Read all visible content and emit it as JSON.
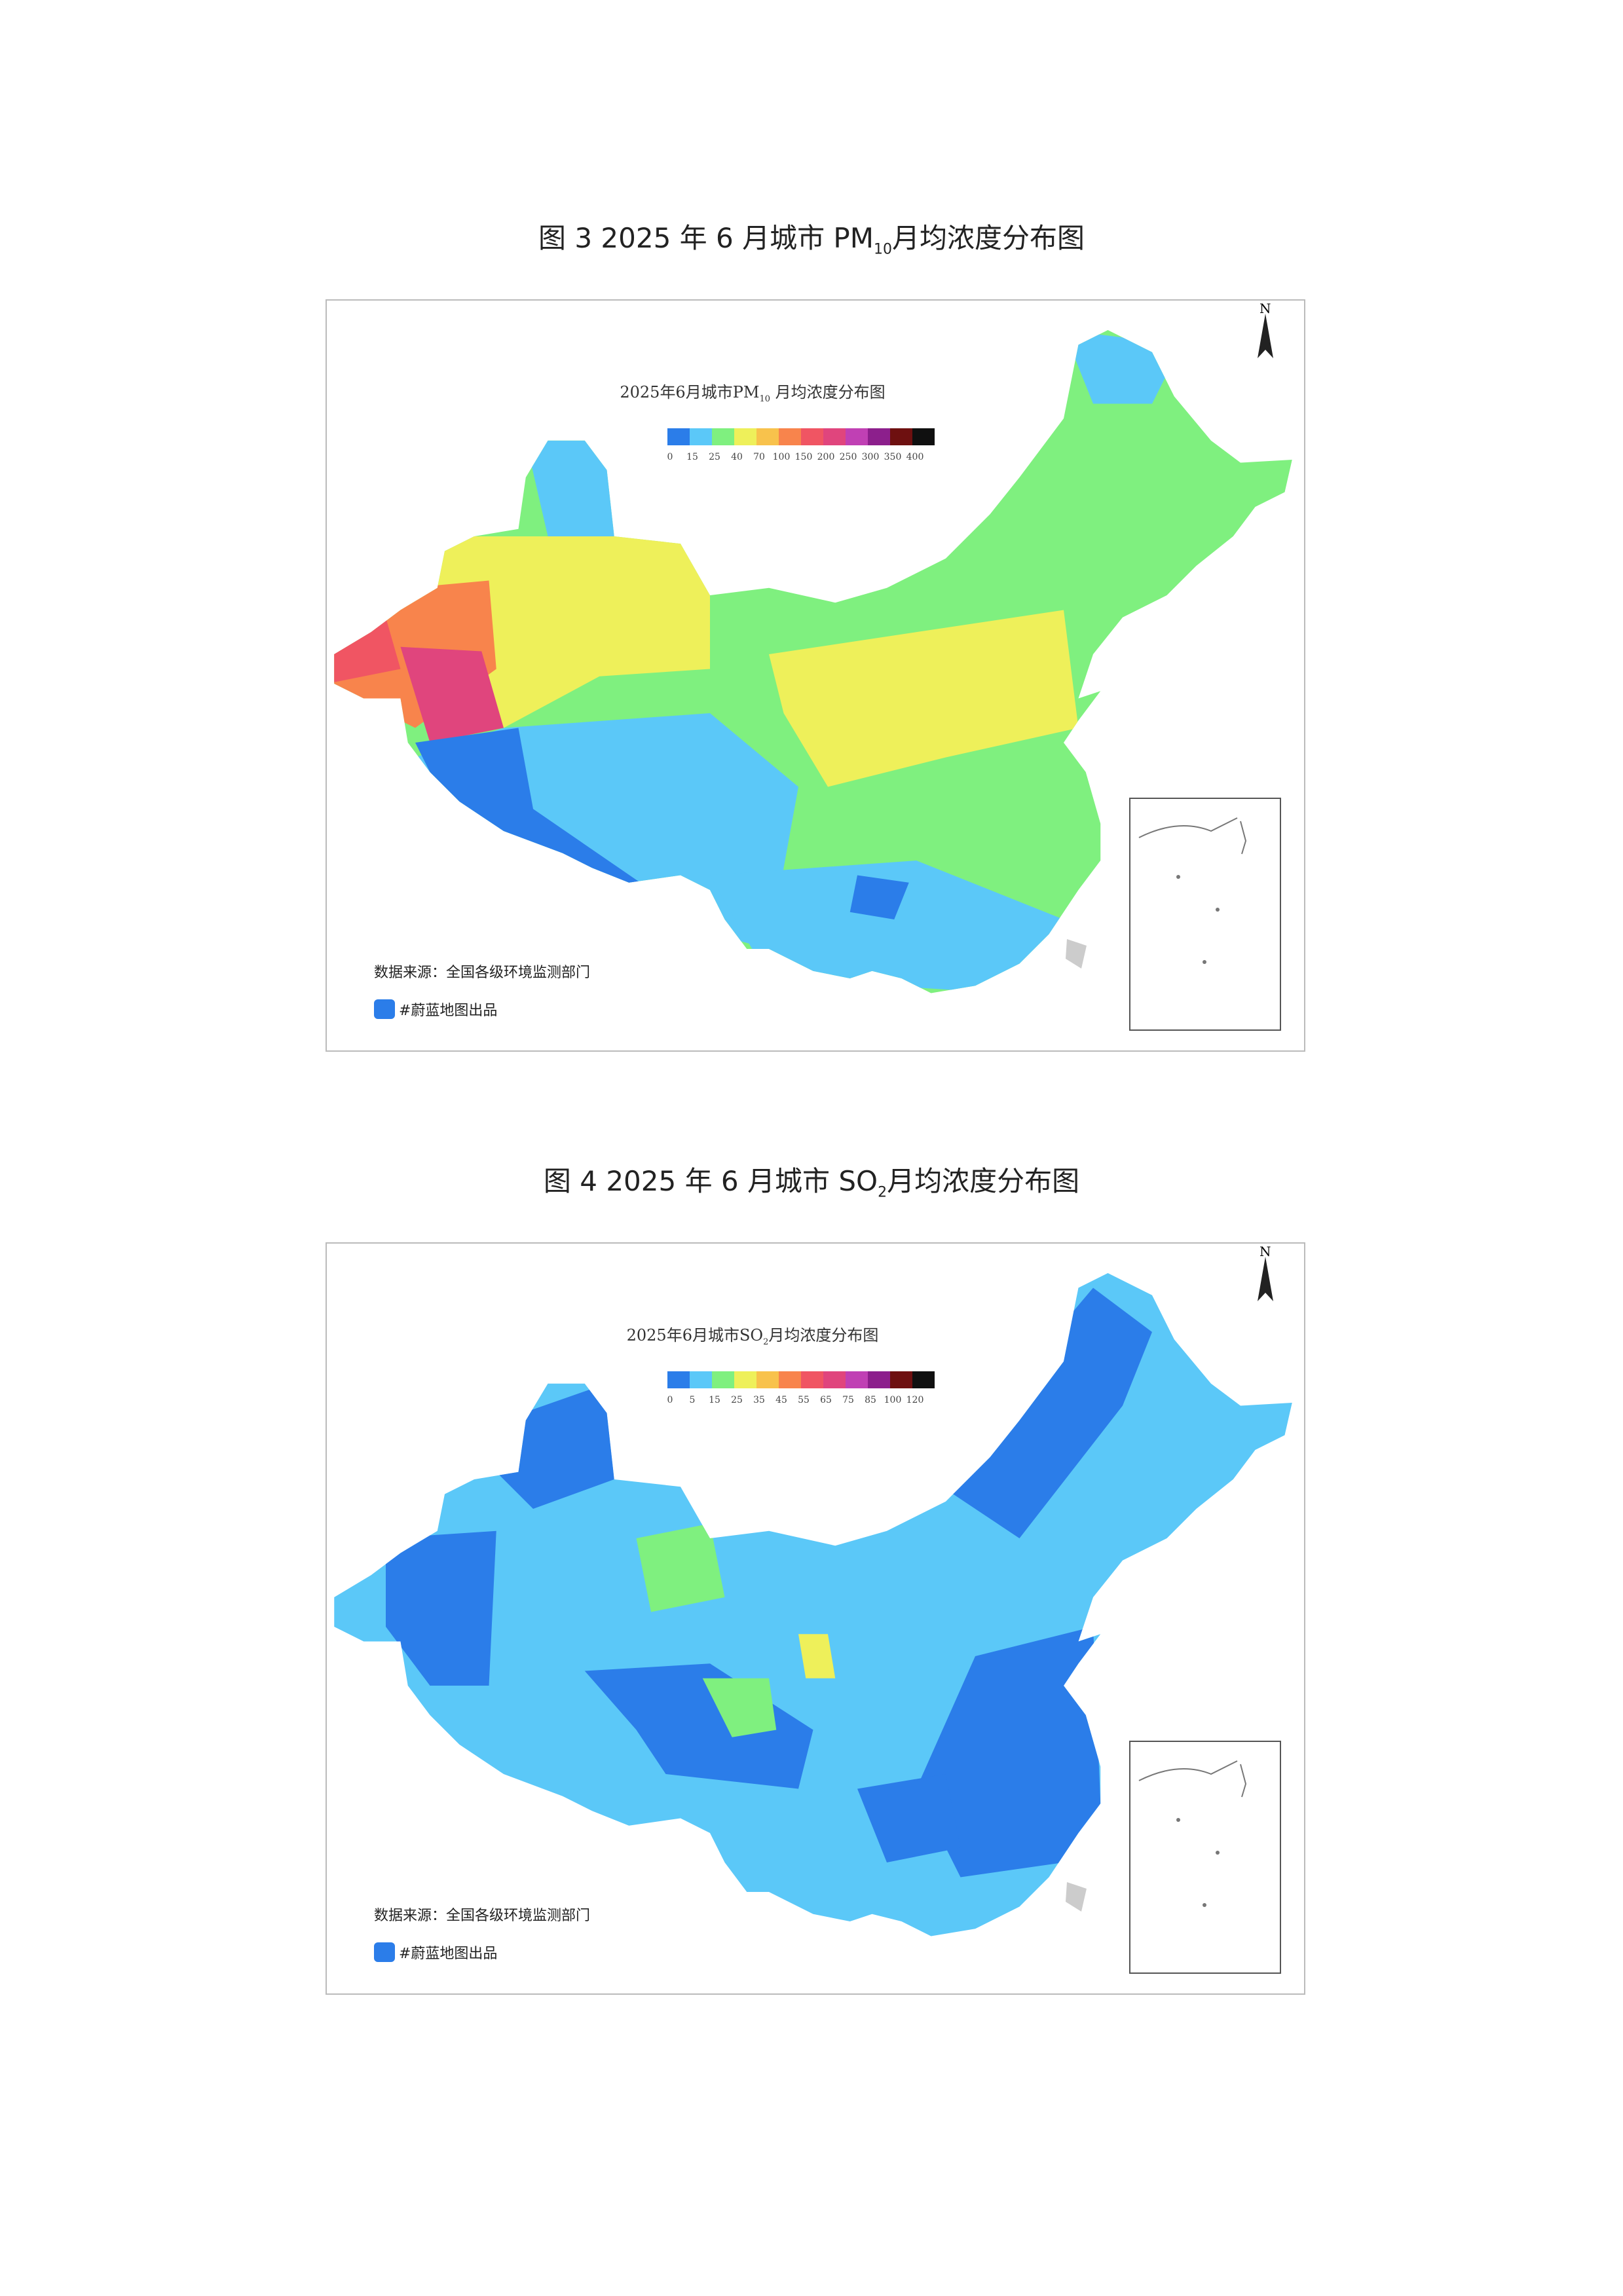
{
  "figures": [
    {
      "caption": {
        "prefix": "图 3 2025 年 6 月城市 PM",
        "sub": "10",
        "suffix": "月均浓度分布图"
      },
      "map": {
        "title": {
          "prefix": "2025年6月城市PM",
          "sub": "10",
          "suffix": " 月均浓度分布图"
        },
        "legend": {
          "colors": [
            "#2b7de9",
            "#5bc8f8",
            "#7ff07f",
            "#eef05a",
            "#f8c24c",
            "#f8844c",
            "#f05563",
            "#e0457d",
            "#c040b4",
            "#8c1f8c",
            "#6e1010",
            "#101010"
          ],
          "labels": [
            "0",
            "15",
            "25",
            "40",
            "70",
            "100",
            "150",
            "200",
            "250",
            "300",
            "350",
            "400"
          ]
        },
        "source": "数据来源：全国各级环境监测部门",
        "credit": "#蔚蓝地图出品",
        "north": "N"
      }
    },
    {
      "caption": {
        "prefix": "图 4 2025 年 6 月城市 SO",
        "sub": "2",
        "suffix": "月均浓度分布图"
      },
      "map": {
        "title": {
          "prefix": "2025年6月城市SO",
          "sub": "2",
          "suffix": "月均浓度分布图"
        },
        "legend": {
          "colors": [
            "#2b7de9",
            "#5bc8f8",
            "#7ff07f",
            "#eef05a",
            "#f8c24c",
            "#f8844c",
            "#f05563",
            "#e0457d",
            "#c040b4",
            "#8c1f8c",
            "#6e1010",
            "#101010"
          ],
          "labels": [
            "0",
            "5",
            "15",
            "25",
            "35",
            "45",
            "55",
            "65",
            "75",
            "85",
            "100",
            "120"
          ]
        },
        "source": "数据来源：全国各级环境监测部门",
        "credit": "#蔚蓝地图出品",
        "north": "N"
      }
    }
  ]
}
